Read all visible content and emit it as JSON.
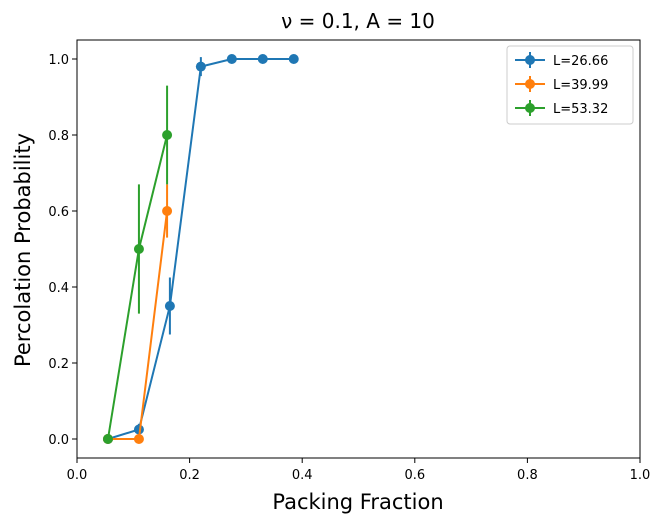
{
  "chart_data": {
    "type": "line",
    "title": "ν = 0.1, A = 10",
    "xlabel": "Packing Fraction",
    "ylabel": "Percolation Probability",
    "xlim": [
      0.0,
      1.0
    ],
    "ylim": [
      -0.05,
      1.05
    ],
    "xticks": [
      "0.0",
      "0.2",
      "0.4",
      "0.6",
      "0.8",
      "1.0"
    ],
    "yticks": [
      "0.0",
      "0.2",
      "0.4",
      "0.6",
      "0.8",
      "1.0"
    ],
    "grid": false,
    "legend_position": "top-right",
    "series": [
      {
        "name": "L=26.66",
        "color": "#1f77b4",
        "x": [
          0.055,
          0.11,
          0.165,
          0.22,
          0.275,
          0.33,
          0.385
        ],
        "y": [
          0.0,
          0.025,
          0.35,
          0.98,
          1.0,
          1.0,
          1.0
        ],
        "yerr": [
          0.0,
          0.015,
          0.075,
          0.025,
          0.0,
          0.0,
          0.0
        ]
      },
      {
        "name": "L=39.99",
        "color": "#ff7f0e",
        "x": [
          0.055,
          0.11,
          0.16
        ],
        "y": [
          0.0,
          0.0,
          0.6
        ],
        "yerr": [
          0.0,
          0.0,
          0.07
        ]
      },
      {
        "name": "L=53.32",
        "color": "#2ca02c",
        "x": [
          0.055,
          0.11,
          0.16
        ],
        "y": [
          0.0,
          0.5,
          0.8
        ],
        "yerr": [
          0.0,
          0.17,
          0.13
        ]
      }
    ]
  }
}
